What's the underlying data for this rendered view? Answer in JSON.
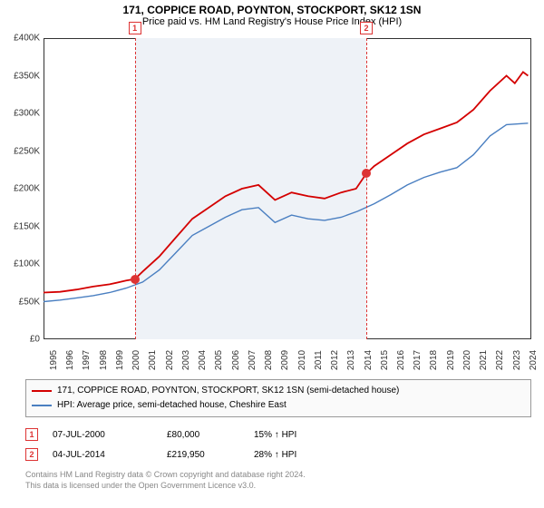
{
  "title": "171, COPPICE ROAD, POYNTON, STOCKPORT, SK12 1SN",
  "subtitle": "Price paid vs. HM Land Registry's House Price Index (HPI)",
  "chart": {
    "type": "line",
    "xlim": [
      1995,
      2024.5
    ],
    "ylim": [
      0,
      400000
    ],
    "ytick_step": 50000,
    "ytick_labels": [
      "£0",
      "£50K",
      "£100K",
      "£150K",
      "£200K",
      "£250K",
      "£300K",
      "£350K",
      "£400K"
    ],
    "xtick_step": 1,
    "xtick_labels": [
      "1995",
      "1996",
      "1997",
      "1998",
      "1999",
      "2000",
      "2001",
      "2002",
      "2003",
      "2004",
      "2005",
      "2006",
      "2007",
      "2008",
      "2009",
      "2010",
      "2011",
      "2012",
      "2013",
      "2014",
      "2015",
      "2016",
      "2017",
      "2018",
      "2019",
      "2020",
      "2021",
      "2022",
      "2023",
      "2024"
    ],
    "background_color": "#ffffff",
    "shade_color": "#eef2f7",
    "shade_range": [
      2000.52,
      2014.52
    ],
    "marker_vline_color": "#d33",
    "series": [
      {
        "name": "price_paid",
        "color": "#d40000",
        "width": 1.8,
        "points": [
          [
            1995,
            62000
          ],
          [
            1996,
            63000
          ],
          [
            1997,
            66000
          ],
          [
            1998,
            70000
          ],
          [
            1999,
            73000
          ],
          [
            2000,
            78000
          ],
          [
            2000.52,
            80000
          ],
          [
            2001,
            90000
          ],
          [
            2002,
            110000
          ],
          [
            2003,
            135000
          ],
          [
            2004,
            160000
          ],
          [
            2005,
            175000
          ],
          [
            2006,
            190000
          ],
          [
            2007,
            200000
          ],
          [
            2008,
            205000
          ],
          [
            2009,
            185000
          ],
          [
            2010,
            195000
          ],
          [
            2011,
            190000
          ],
          [
            2012,
            187000
          ],
          [
            2013,
            195000
          ],
          [
            2013.9,
            200000
          ],
          [
            2014.52,
            219950
          ],
          [
            2015,
            230000
          ],
          [
            2016,
            245000
          ],
          [
            2017,
            260000
          ],
          [
            2018,
            272000
          ],
          [
            2019,
            280000
          ],
          [
            2020,
            288000
          ],
          [
            2021,
            305000
          ],
          [
            2022,
            330000
          ],
          [
            2023,
            350000
          ],
          [
            2023.5,
            340000
          ],
          [
            2024,
            355000
          ],
          [
            2024.3,
            350000
          ]
        ]
      },
      {
        "name": "hpi",
        "color": "#4a7fc1",
        "width": 1.4,
        "points": [
          [
            1995,
            50000
          ],
          [
            1996,
            52000
          ],
          [
            1997,
            55000
          ],
          [
            1998,
            58000
          ],
          [
            1999,
            62000
          ],
          [
            2000,
            68000
          ],
          [
            2001,
            76000
          ],
          [
            2002,
            92000
          ],
          [
            2003,
            115000
          ],
          [
            2004,
            138000
          ],
          [
            2005,
            150000
          ],
          [
            2006,
            162000
          ],
          [
            2007,
            172000
          ],
          [
            2008,
            175000
          ],
          [
            2009,
            155000
          ],
          [
            2010,
            165000
          ],
          [
            2011,
            160000
          ],
          [
            2012,
            158000
          ],
          [
            2013,
            162000
          ],
          [
            2014,
            170000
          ],
          [
            2015,
            180000
          ],
          [
            2016,
            192000
          ],
          [
            2017,
            205000
          ],
          [
            2018,
            215000
          ],
          [
            2019,
            222000
          ],
          [
            2020,
            228000
          ],
          [
            2021,
            245000
          ],
          [
            2022,
            270000
          ],
          [
            2023,
            285000
          ],
          [
            2024.3,
            287000
          ]
        ]
      }
    ],
    "event_markers": [
      {
        "num": "1",
        "x": 2000.52,
        "y": 80000
      },
      {
        "num": "2",
        "x": 2014.52,
        "y": 219950
      }
    ]
  },
  "legend": {
    "items": [
      {
        "label": "171, COPPICE ROAD, POYNTON, STOCKPORT, SK12 1SN (semi-detached house)",
        "color": "#d40000"
      },
      {
        "label": "HPI: Average price, semi-detached house, Cheshire East",
        "color": "#4a7fc1"
      }
    ]
  },
  "transactions": [
    {
      "num": "1",
      "date": "07-JUL-2000",
      "price": "£80,000",
      "delta": "15% ↑ HPI"
    },
    {
      "num": "2",
      "date": "04-JUL-2014",
      "price": "£219,950",
      "delta": "28% ↑ HPI"
    }
  ],
  "footnote_line1": "Contains HM Land Registry data © Crown copyright and database right 2024.",
  "footnote_line2": "This data is licensed under the Open Government Licence v3.0."
}
